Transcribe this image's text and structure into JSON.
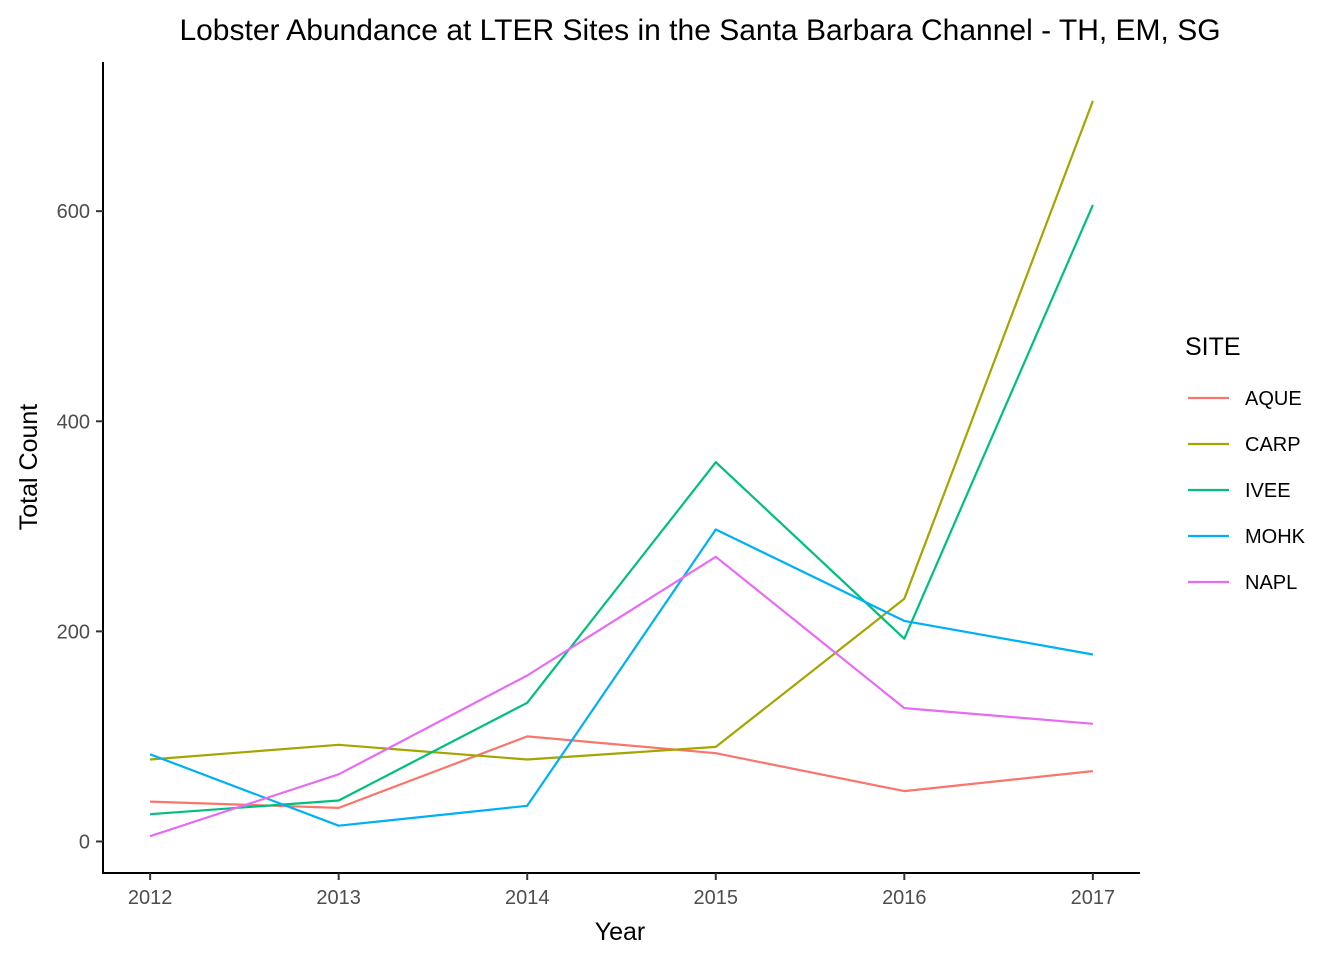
{
  "chart_data": {
    "type": "line",
    "title": "Lobster Abundance at LTER Sites in the Santa Barbara Channel - TH, EM, SG",
    "xlabel": "Year",
    "ylabel": "Total Count",
    "x": [
      2012,
      2013,
      2014,
      2015,
      2016,
      2017
    ],
    "x_ticks": [
      "2012",
      "2013",
      "2014",
      "2015",
      "2016",
      "2017"
    ],
    "y_ticks": [
      "0",
      "200",
      "400",
      "600"
    ],
    "xlim": [
      2011.75,
      2017.25
    ],
    "ylim": [
      -30,
      742
    ],
    "grid": false,
    "legend": {
      "title": "SITE",
      "placement": "right"
    },
    "series": [
      {
        "name": "AQUE",
        "color": "#F8766D",
        "values": [
          38,
          32,
          100,
          84,
          48,
          67
        ]
      },
      {
        "name": "CARP",
        "color": "#A3A500",
        "values": [
          78,
          92,
          78,
          90,
          231,
          705
        ]
      },
      {
        "name": "IVEE",
        "color": "#00BF7D",
        "values": [
          26,
          39,
          132,
          361,
          193,
          606
        ]
      },
      {
        "name": "MOHK",
        "color": "#00B0F6",
        "values": [
          83,
          15,
          34,
          297,
          210,
          178
        ]
      },
      {
        "name": "NAPL",
        "color": "#E76BF3",
        "values": [
          5,
          64,
          158,
          271,
          127,
          112
        ]
      }
    ]
  }
}
